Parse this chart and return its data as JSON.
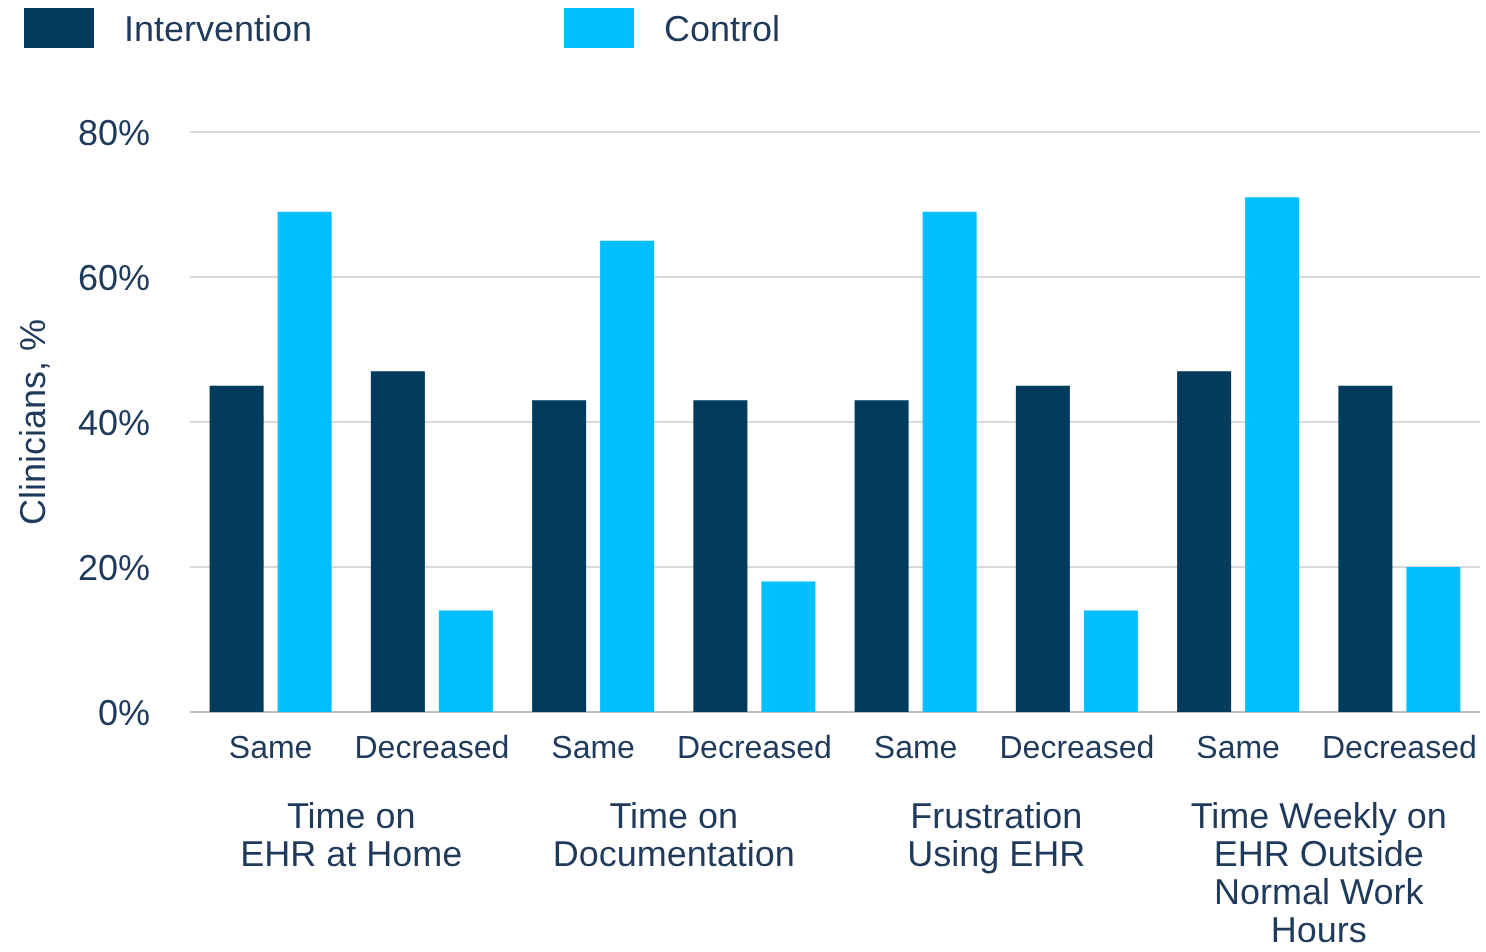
{
  "chart_data": {
    "type": "bar",
    "ylabel": "Clinicians, %",
    "categories": [
      "Same",
      "Decreased",
      "Same",
      "Decreased",
      "Same",
      "Decreased",
      "Same",
      "Decreased"
    ],
    "series": [
      {
        "name": "Intervention",
        "color": "#003a5c",
        "values": [
          45,
          47,
          43,
          43,
          43,
          45,
          47,
          45
        ]
      },
      {
        "name": "Control",
        "color": "#00bfff",
        "values": [
          69,
          14,
          65,
          18,
          69,
          14,
          71,
          20
        ]
      }
    ],
    "ylim": [
      0,
      80
    ],
    "yticks": [
      {
        "value": 0,
        "label": "0%"
      },
      {
        "value": 20,
        "label": "20%"
      },
      {
        "value": 40,
        "label": "40%"
      },
      {
        "value": 60,
        "label": "60%"
      },
      {
        "value": 80,
        "label": "80%"
      }
    ],
    "grid": "y",
    "legend": "top left",
    "annotations": [
      "Time on\nEHR at Home",
      "Time on\nDocumentation",
      "Frustration\nUsing EHR",
      "Time Weekly on\nEHR Outside\nNormal Work\nHours"
    ]
  }
}
